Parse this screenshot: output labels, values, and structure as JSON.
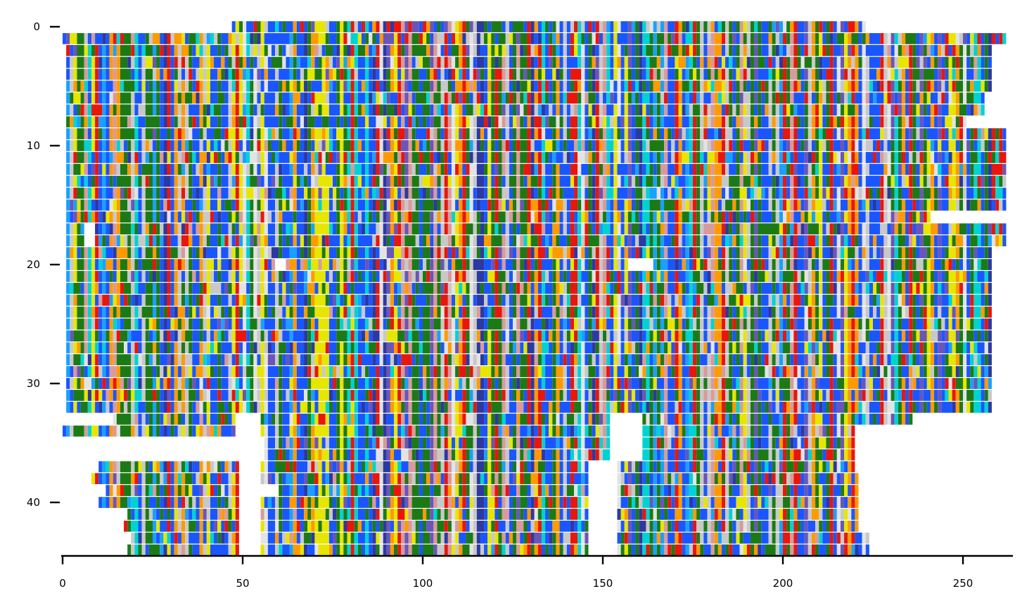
{
  "chart_data": {
    "type": "heatmap",
    "title": "",
    "xlabel": "",
    "ylabel": "",
    "n_sequences": 45,
    "n_columns": 265,
    "xlim": [
      0,
      265
    ],
    "ylim": [
      45,
      0
    ],
    "x_ticks": [
      0,
      50,
      100,
      150,
      200,
      250
    ],
    "x_tick_labels": [
      "0",
      "50",
      "100",
      "150",
      "200",
      "250"
    ],
    "y_ticks": [
      0,
      10,
      20,
      30,
      40
    ],
    "y_tick_labels": [
      "0",
      "10",
      "20",
      "30",
      "40"
    ],
    "grid": false,
    "legend": "none",
    "rows": [
      {
        "index": 0,
        "start": 47,
        "end": 223
      },
      {
        "index": 1,
        "start": 0,
        "end": 262
      },
      {
        "index": 2,
        "start": 1,
        "end": 258
      },
      {
        "index": 3,
        "start": 1,
        "end": 258
      },
      {
        "index": 4,
        "start": 1,
        "end": 258
      },
      {
        "index": 5,
        "start": 1,
        "end": 258
      },
      {
        "index": 6,
        "start": 1,
        "end": 256
      },
      {
        "index": 7,
        "start": 1,
        "end": 256
      },
      {
        "index": 8,
        "start": 1,
        "end": 251
      },
      {
        "index": 9,
        "start": 1,
        "end": 262
      },
      {
        "index": 10,
        "start": 1,
        "end": 262
      },
      {
        "index": 11,
        "start": 1,
        "end": 262
      },
      {
        "index": 12,
        "start": 1,
        "end": 262
      },
      {
        "index": 13,
        "start": 1,
        "end": 262
      },
      {
        "index": 14,
        "start": 1,
        "end": 262
      },
      {
        "index": 15,
        "start": 1,
        "end": 262
      },
      {
        "index": 16,
        "start": 1,
        "end": 262
      },
      {
        "index": 17,
        "start": 1,
        "end": 262
      },
      {
        "index": 18,
        "start": 1,
        "end": 262
      },
      {
        "index": 19,
        "start": 1,
        "end": 258
      },
      {
        "index": 20,
        "start": 1,
        "end": 258
      },
      {
        "index": 21,
        "start": 1,
        "end": 258
      },
      {
        "index": 22,
        "start": 1,
        "end": 258
      },
      {
        "index": 23,
        "start": 1,
        "end": 258
      },
      {
        "index": 24,
        "start": 1,
        "end": 258
      },
      {
        "index": 25,
        "start": 1,
        "end": 258
      },
      {
        "index": 26,
        "start": 1,
        "end": 258
      },
      {
        "index": 27,
        "start": 1,
        "end": 258
      },
      {
        "index": 28,
        "start": 1,
        "end": 258
      },
      {
        "index": 29,
        "start": 1,
        "end": 258
      },
      {
        "index": 30,
        "start": 1,
        "end": 258
      },
      {
        "index": 31,
        "start": 1,
        "end": 258
      },
      {
        "index": 32,
        "start": 1,
        "end": 258
      },
      {
        "index": 33,
        "start": 14,
        "end": 236
      },
      {
        "index": 34,
        "start": 0,
        "end": 220
      },
      {
        "index": 35,
        "start": 56,
        "end": 220
      },
      {
        "index": 36,
        "start": 56,
        "end": 220
      },
      {
        "index": 37,
        "start": 10,
        "end": 220
      },
      {
        "index": 38,
        "start": 8,
        "end": 221
      },
      {
        "index": 39,
        "start": 12,
        "end": 221
      },
      {
        "index": 40,
        "start": 10,
        "end": 221
      },
      {
        "index": 41,
        "start": 18,
        "end": 221
      },
      {
        "index": 42,
        "start": 17,
        "end": 221
      },
      {
        "index": 43,
        "start": 19,
        "end": 224
      },
      {
        "index": 44,
        "start": 18,
        "end": 224
      }
    ],
    "gaps": [
      {
        "rows": [
          33,
          34
        ],
        "start": 48,
        "end": 55
      },
      {
        "rows": [
          35,
          44
        ],
        "start": 49,
        "end": 55
      },
      {
        "rows": [
          37,
          44
        ],
        "start": 146,
        "end": 154
      },
      {
        "rows": [
          33,
          36
        ],
        "start": 152,
        "end": 161
      },
      {
        "rows": [
          20,
          20
        ],
        "start": 157,
        "end": 164
      },
      {
        "rows": [
          20,
          20
        ],
        "start": 59,
        "end": 62
      },
      {
        "rows": [
          17,
          18
        ],
        "start": 6,
        "end": 9
      },
      {
        "rows": [
          39,
          39
        ],
        "start": 54,
        "end": 60
      },
      {
        "rows": [
          16,
          16
        ],
        "start": 241,
        "end": 262
      }
    ],
    "residue_colors": {
      "blue": "#1a56ff",
      "green": "#1c7a16",
      "red": "#e8160c",
      "orange": "#ff9a00",
      "yellow": "#e6e600",
      "cyan": "#00d2d2",
      "gray": "#c8c8c8",
      "lightgray": "#e3e3e3",
      "purple": "#6a55b8",
      "navy": "#2c39a0",
      "pink": "#d89a9a",
      "lightblue": "#1aa0ff"
    }
  }
}
